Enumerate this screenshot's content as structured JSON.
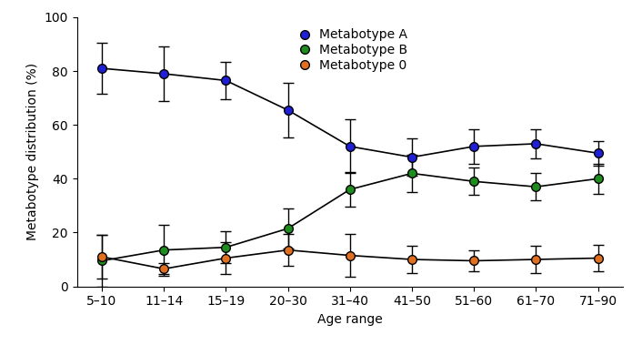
{
  "chart_data": {
    "type": "line",
    "x_label": "Age range",
    "y_label": "Metabotype distribution (%)",
    "categories": [
      "5–10",
      "11–14",
      "15–19",
      "20–30",
      "31–40",
      "41–50",
      "51–60",
      "61–70",
      "71–90"
    ],
    "series": [
      {
        "name": "Metabotype A",
        "color": "#1f1fd6",
        "marker": "o",
        "line_style": "solid",
        "values": [
          81,
          79,
          76.5,
          65.5,
          52,
          48,
          52,
          53,
          49.5
        ],
        "errors": [
          9.5,
          10,
          7,
          10,
          10,
          7,
          6.5,
          5.5,
          4.5
        ]
      },
      {
        "name": "Metabotype B",
        "color": "#1e8c1e",
        "marker": "o",
        "line_style": "solid",
        "values": [
          9.5,
          13.5,
          14.5,
          21.5,
          36,
          42,
          39,
          37,
          40
        ],
        "errors": [
          9.5,
          9.5,
          6,
          7.5,
          6.5,
          7,
          5,
          5,
          5.5
        ]
      },
      {
        "name": "Metabotype 0",
        "color": "#e07020",
        "marker": "o",
        "line_style": "solid",
        "values": [
          11,
          6.5,
          10.5,
          13.5,
          11.5,
          10,
          9.5,
          10,
          10.5
        ],
        "errors": [
          8,
          2,
          6,
          6,
          8,
          5,
          4,
          5,
          5
        ]
      }
    ],
    "ylim": [
      0,
      100
    ],
    "yticks": [
      0,
      20,
      40,
      60,
      80,
      100
    ],
    "grid": false,
    "legend": "upper center"
  }
}
